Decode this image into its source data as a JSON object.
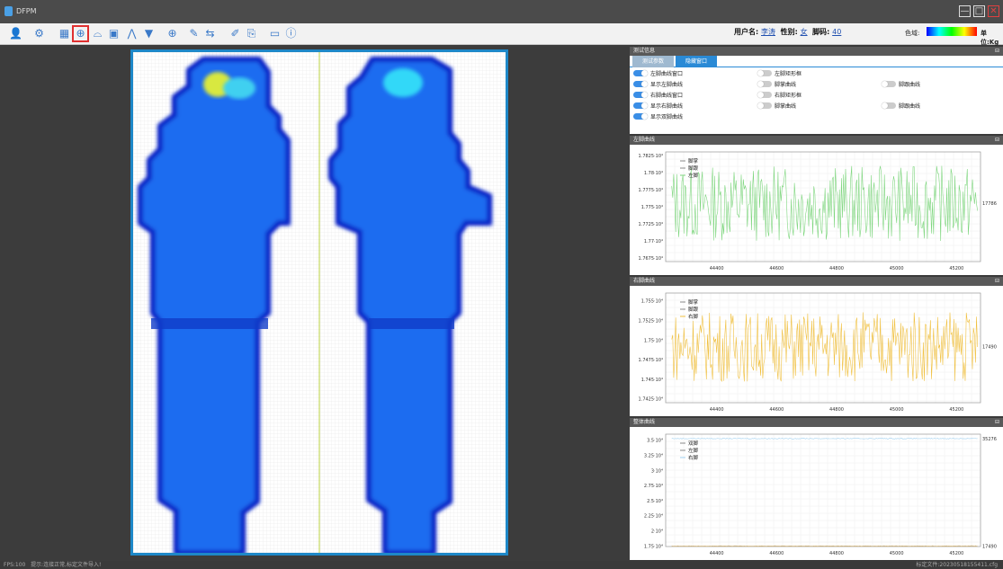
{
  "app": {
    "title": "DFPM"
  },
  "window": {
    "minimize": "—",
    "maximize": "□",
    "close": "✕"
  },
  "toolbar": {
    "icons": [
      "user-icon",
      "settings-icon",
      "grid-icon",
      "crosshair-icon",
      "foot-icon",
      "image-icon",
      "peak-icon",
      "dropdown-triangle-icon",
      "target-icon",
      "edit-icon",
      "swap-icon",
      "brush-icon",
      "export-icon",
      "rectangle-icon",
      "info-icon"
    ]
  },
  "user": {
    "name_label": "用户名:",
    "name": "李涛",
    "gender_label": "性别:",
    "gender": "女",
    "shoe_label": "脚码:",
    "shoe": "40",
    "color_label": "色域:",
    "unit_label": "单位:Kg"
  },
  "heatmap": {
    "left_label": "",
    "right_label": ""
  },
  "test_panel": {
    "title": "测试信息",
    "tabs": [
      "测试参数",
      "隐藏窗口"
    ],
    "toggles": [
      {
        "label": "左脚曲线窗口",
        "on": true
      },
      {
        "label": "左脚矩形框",
        "on": false
      },
      {
        "label": "显示左脚曲线",
        "on": true
      },
      {
        "label": "脚掌曲线",
        "on": false
      },
      {
        "label": "脚跟曲线",
        "on": false
      },
      {
        "label": "右脚曲线窗口",
        "on": true
      },
      {
        "label": "右脚矩形框",
        "on": false
      },
      {
        "label": "显示右脚曲线",
        "on": true
      },
      {
        "label": "脚掌曲线",
        "on": false
      },
      {
        "label": "脚跟曲线",
        "on": false
      },
      {
        "label": "显示双脚曲线",
        "on": true
      }
    ]
  },
  "panels": {
    "left": "左脚曲线",
    "right": "右脚曲线",
    "total": "整体曲线"
  },
  "chart_data": [
    {
      "type": "line",
      "title": "左脚曲线",
      "legend": [
        "脚掌",
        "脚跟",
        "左脚"
      ],
      "x_ticks": [
        "44400",
        "44600",
        "44800",
        "45000",
        "45200"
      ],
      "y_ticks": [
        "1.7825·10⁴",
        "1.78·10⁴",
        "1.7775·10⁴",
        "1.775·10⁴",
        "1.7725·10⁴",
        "1.77·10⁴",
        "1.7675·10⁴"
      ],
      "ylim": [
        17670,
        17830
      ],
      "xlim": [
        44230,
        45280
      ],
      "end_label": "17786",
      "color": "#7ed67e",
      "mean": 17755,
      "amp": 55
    },
    {
      "type": "line",
      "title": "右脚曲线",
      "legend": [
        "脚掌",
        "脚跟",
        "右脚"
      ],
      "x_ticks": [
        "44400",
        "44600",
        "44800",
        "45000",
        "45200"
      ],
      "y_ticks": [
        "1.755·10⁴",
        "1.7525·10⁴",
        "1.75·10⁴",
        "1.7475·10⁴",
        "1.745·10⁴",
        "1.7425·10⁴"
      ],
      "ylim": [
        17420,
        17560
      ],
      "xlim": [
        44230,
        45280
      ],
      "end_label": "17490",
      "color": "#f0c040",
      "mean": 17492,
      "amp": 45
    },
    {
      "type": "line",
      "title": "整体曲线",
      "legend": [
        "双脚",
        "左脚",
        "右脚"
      ],
      "x_ticks": [
        "44400",
        "44600",
        "44800",
        "45000",
        "45200"
      ],
      "y_ticks": [
        "3.5·10⁴",
        "3.25·10⁴",
        "3·10⁴",
        "2.75·10⁴",
        "2.5·10⁴",
        "2.25·10⁴",
        "2·10⁴",
        "1.75·10⁴"
      ],
      "ylim": [
        17400,
        36000
      ],
      "xlim": [
        44230,
        45280
      ],
      "end_label": "35276",
      "end_label2": "17490",
      "color": "#9fd0f0",
      "mean": 35276,
      "amp": 150
    }
  ],
  "status": {
    "fps": "FPS:100",
    "hint": "提示:连接正常,标定文件导入!",
    "file": "标定文件:20230518155411.cfg"
  }
}
